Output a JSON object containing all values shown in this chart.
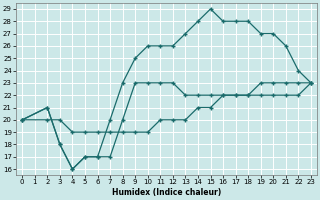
{
  "xlabel": "Humidex (Indice chaleur)",
  "bg_color": "#cce8e8",
  "grid_color": "#ffffff",
  "line_color": "#1a6b6b",
  "xlim": [
    -0.5,
    23.5
  ],
  "ylim": [
    15.5,
    29.5
  ],
  "xticks": [
    0,
    1,
    2,
    3,
    4,
    5,
    6,
    7,
    8,
    9,
    10,
    11,
    12,
    13,
    14,
    15,
    16,
    17,
    18,
    19,
    20,
    21,
    22,
    23
  ],
  "yticks": [
    16,
    17,
    18,
    19,
    20,
    21,
    22,
    23,
    24,
    25,
    26,
    27,
    28,
    29
  ],
  "line1_x": [
    0,
    2,
    3,
    4,
    5,
    6,
    7,
    8,
    9,
    10,
    11,
    12,
    13,
    14,
    15,
    16,
    17,
    18,
    19,
    20,
    21,
    22,
    23
  ],
  "line1_y": [
    20,
    21,
    18,
    16,
    17,
    17,
    20,
    23,
    25,
    26,
    26,
    26,
    27,
    28,
    29,
    28,
    28,
    28,
    27,
    27,
    26,
    24,
    23
  ],
  "line2_x": [
    0,
    2,
    3,
    4,
    5,
    6,
    7,
    8,
    9,
    10,
    11,
    12,
    13,
    14,
    15,
    16,
    17,
    18,
    19,
    20,
    21,
    22,
    23
  ],
  "line2_y": [
    20,
    21,
    18,
    16,
    17,
    17,
    17,
    20,
    23,
    23,
    23,
    23,
    22,
    22,
    22,
    22,
    22,
    22,
    22,
    22,
    22,
    22,
    23
  ],
  "line3_x": [
    0,
    2,
    3,
    4,
    5,
    6,
    7,
    8,
    9,
    10,
    11,
    12,
    13,
    14,
    15,
    16,
    17,
    18,
    19,
    20,
    21,
    22,
    23
  ],
  "line3_y": [
    20,
    20,
    20,
    19,
    19,
    19,
    19,
    19,
    19,
    19,
    20,
    20,
    20,
    21,
    21,
    22,
    22,
    22,
    23,
    23,
    23,
    23,
    23
  ]
}
